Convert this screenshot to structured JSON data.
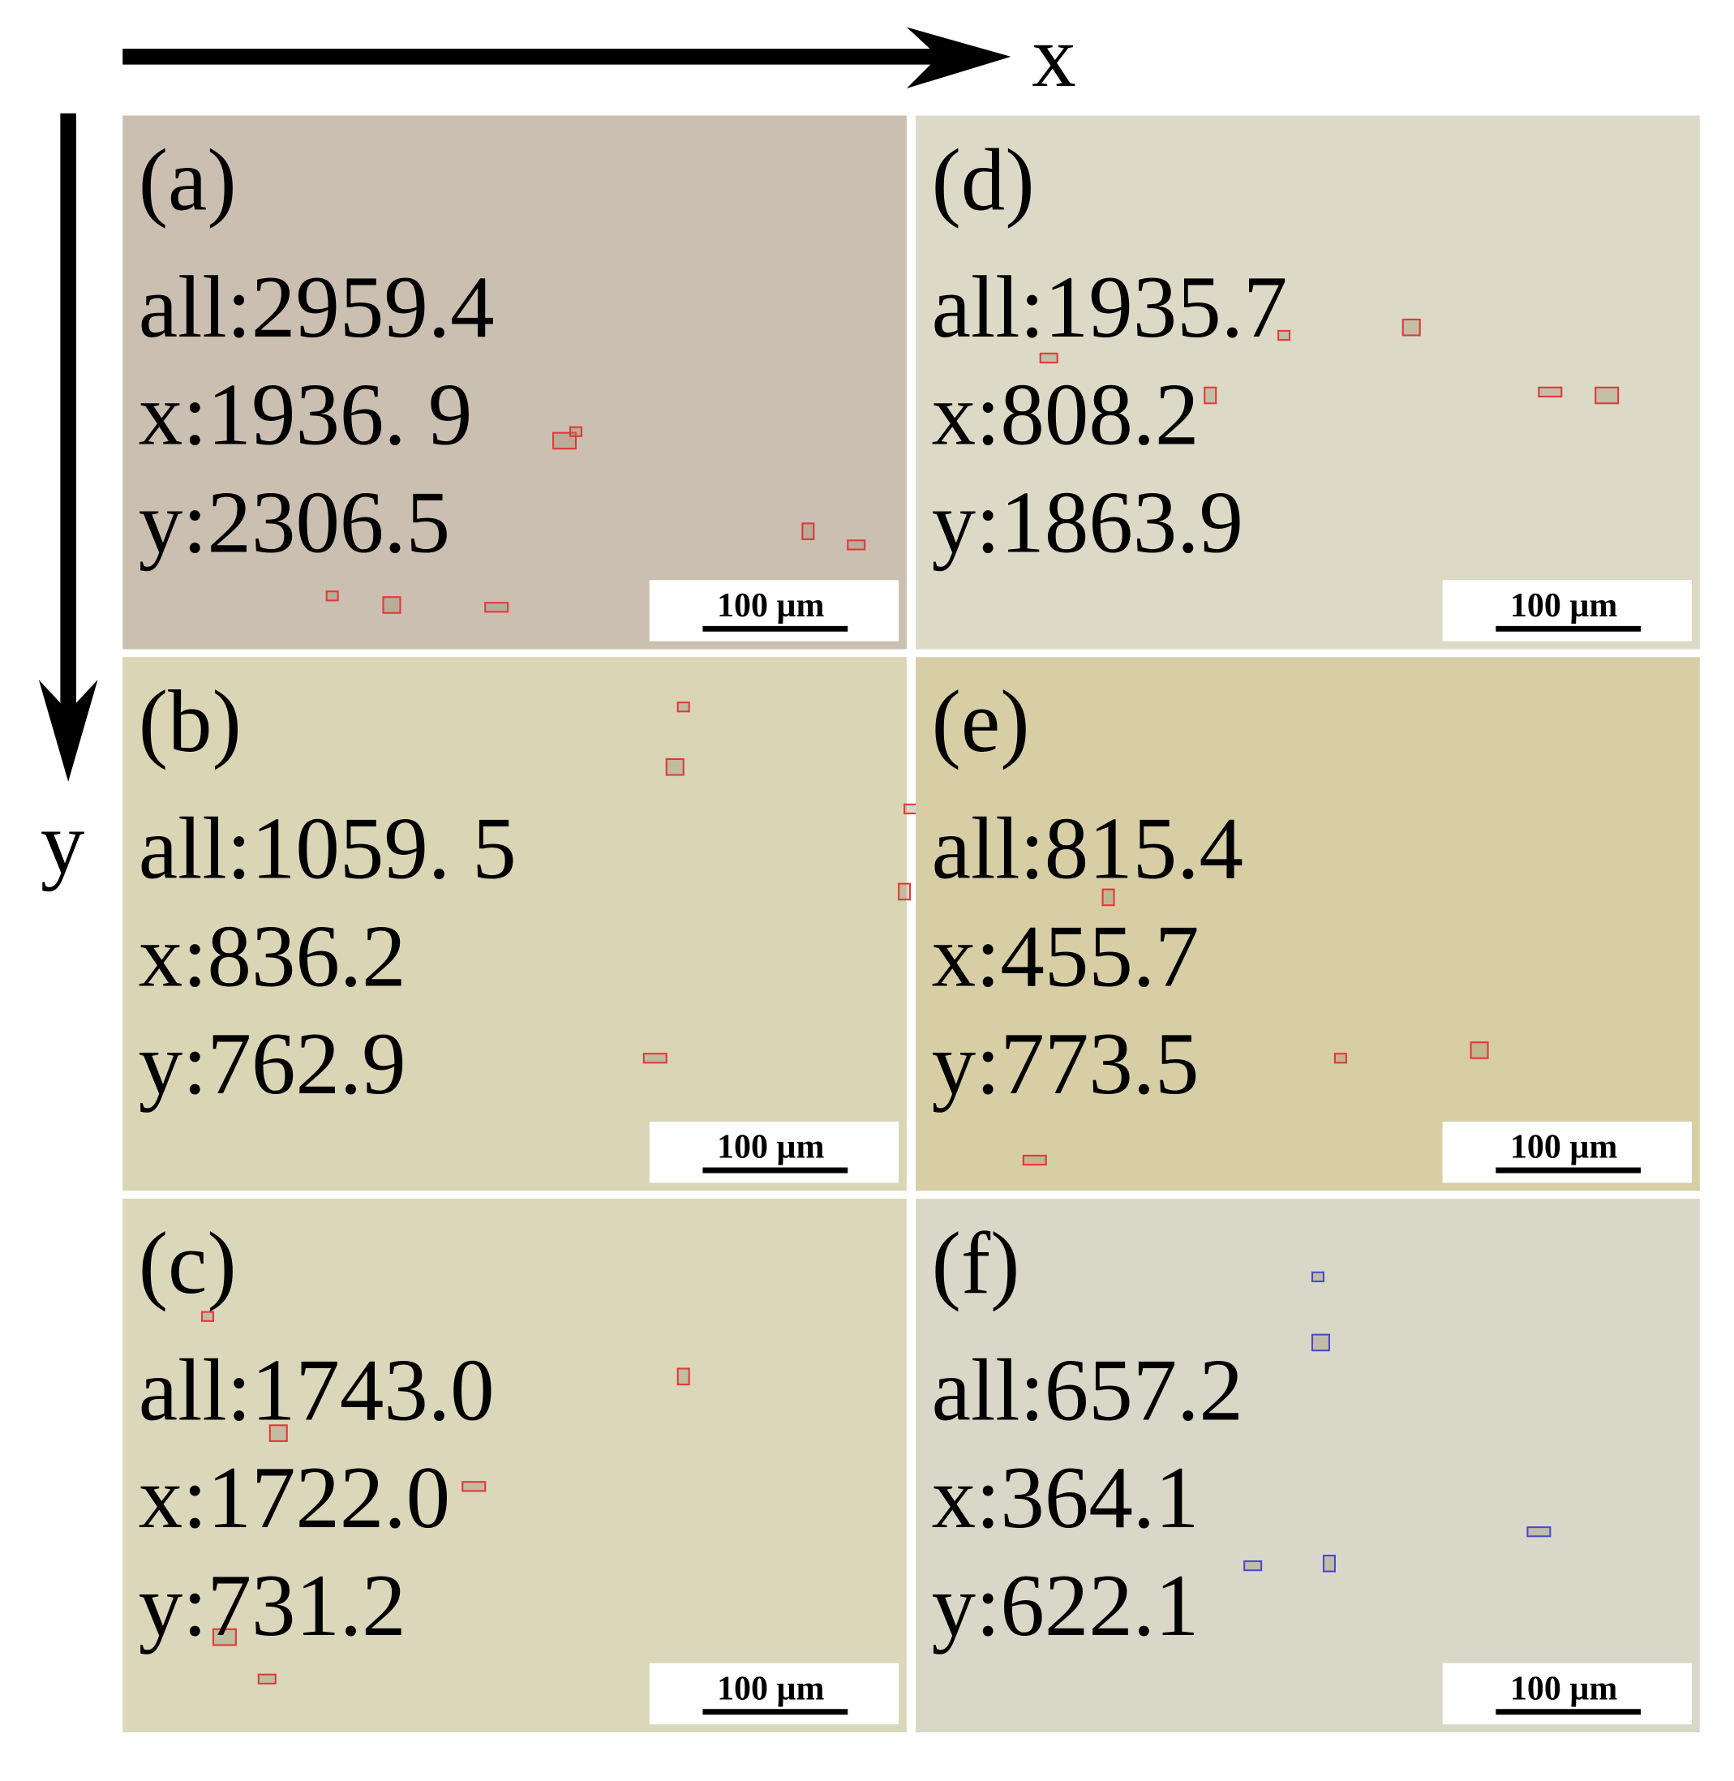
{
  "axes": {
    "x_label": "x",
    "y_label": "y"
  },
  "panels": [
    {
      "label": "(a)",
      "all": "all:2959.4",
      "x": "x:1936. 9",
      "y": "y:2306.5",
      "scale_bar": "100 µm"
    },
    {
      "label": "(b)",
      "all": "all:1059. 5",
      "x": "x:836.2",
      "y": "y:762.9",
      "scale_bar": "100 µm"
    },
    {
      "label": "(c)",
      "all": "all:1743.0",
      "x": "x:1722.0",
      "y": "y:731.2",
      "scale_bar": "100 µm"
    },
    {
      "label": "(d)",
      "all": "all:1935.7",
      "x": "x:808.2",
      "y": "y:1863.9",
      "scale_bar": "100 µm"
    },
    {
      "label": "(e)",
      "all": "all:815.4",
      "x": "x:455.7",
      "y": "y:773.5",
      "scale_bar": "100 µm"
    },
    {
      "label": "(f)",
      "all": "all:657.2",
      "x": "x:364.1",
      "y": "y:622.1",
      "scale_bar": "100 µm"
    }
  ]
}
